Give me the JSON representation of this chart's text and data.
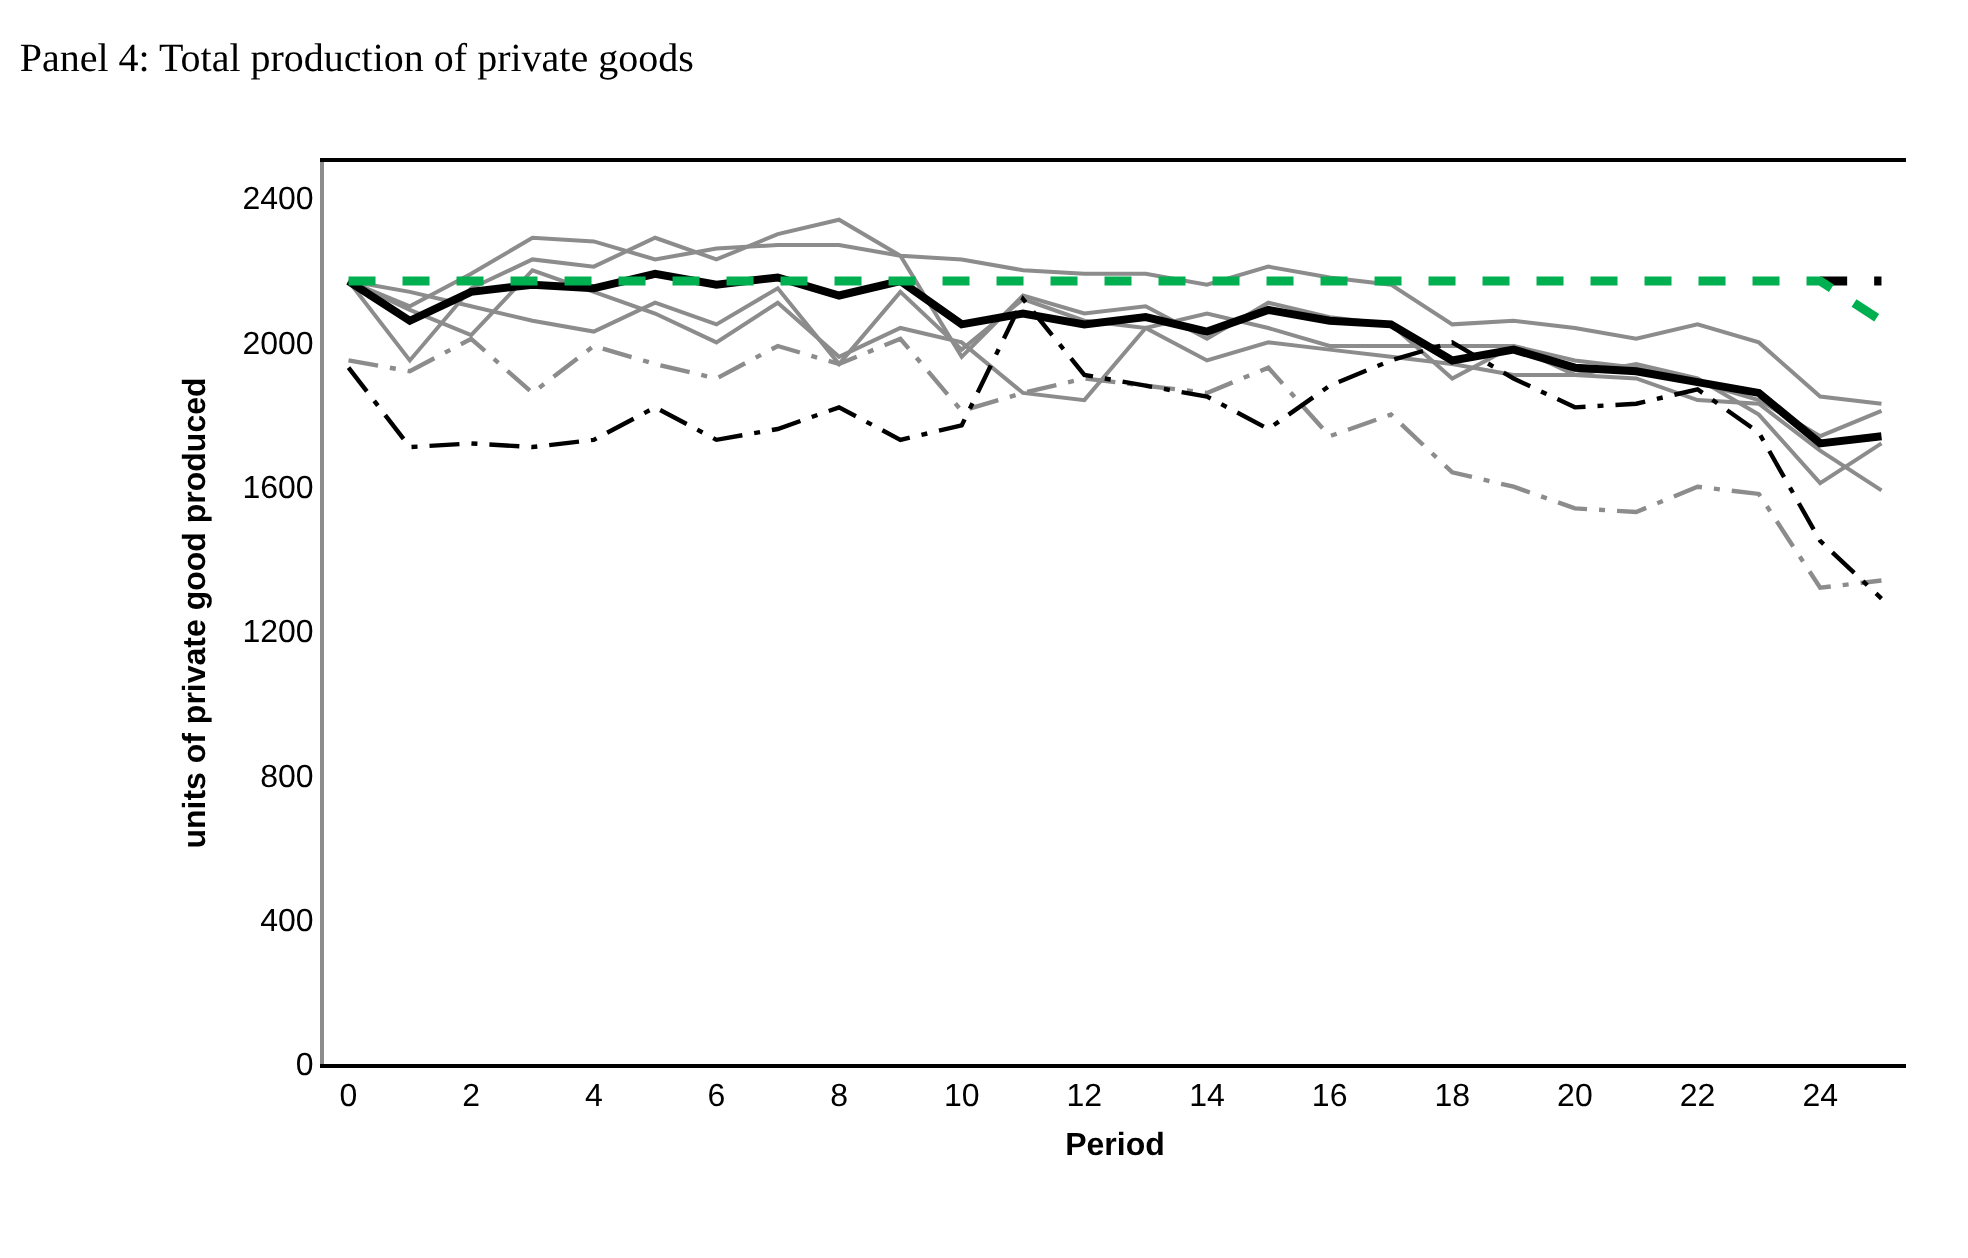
{
  "chart_data": {
    "type": "line",
    "title": "Panel 4: Total production of private goods",
    "xlabel": "Period",
    "ylabel": "units of private good produced",
    "x": [
      0,
      1,
      2,
      3,
      4,
      5,
      6,
      7,
      8,
      9,
      10,
      11,
      12,
      13,
      14,
      15,
      16,
      17,
      18,
      19,
      20,
      21,
      22,
      23,
      24,
      25
    ],
    "xlim": [
      -0.4,
      25.4
    ],
    "xticks": [
      0,
      2,
      4,
      6,
      8,
      10,
      12,
      14,
      16,
      18,
      20,
      22,
      24
    ],
    "ylim": [
      0,
      2500
    ],
    "yticks": [
      0,
      400,
      800,
      1200,
      1600,
      2000,
      2400
    ],
    "marker": "none",
    "series": [
      {
        "color": "#8c8c8c",
        "line_style": "solid",
        "values": [
          2170,
          2100,
          2190,
          2290,
          2280,
          2230,
          2260,
          2270,
          2270,
          2240,
          2230,
          2200,
          2190,
          2190,
          2160,
          2210,
          2180,
          2160,
          2050,
          2060,
          2040,
          2010,
          2050,
          2000,
          1850,
          1830
        ]
      },
      {
        "color": "#8c8c8c",
        "line_style": "solid",
        "values": [
          2170,
          1950,
          2150,
          2230,
          2210,
          2290,
          2230,
          2300,
          2340,
          2240,
          1960,
          2130,
          2080,
          2100,
          2010,
          2110,
          2070,
          2050,
          1900,
          1990,
          1910,
          1940,
          1900,
          1800,
          1610,
          1720
        ]
      },
      {
        "color": "#8c8c8c",
        "line_style": "solid",
        "values": [
          2170,
          2140,
          2100,
          2060,
          2030,
          2110,
          2050,
          2150,
          1940,
          2140,
          1980,
          2120,
          2060,
          2040,
          2080,
          2040,
          1990,
          1990,
          1990,
          1990,
          1950,
          1930,
          1890,
          1840,
          1740,
          1810
        ]
      },
      {
        "color": "#8c8c8c",
        "line_style": "solid",
        "values": [
          2170,
          2090,
          2020,
          2200,
          2140,
          2080,
          2000,
          2110,
          1960,
          2040,
          2000,
          1860,
          1840,
          2040,
          1950,
          2000,
          1980,
          1960,
          1940,
          1910,
          1910,
          1900,
          1840,
          1830,
          1700,
          1590
        ]
      },
      {
        "color": "#8c8c8c",
        "line_style": "dashdot",
        "values": [
          1950,
          1920,
          2010,
          1860,
          1990,
          1940,
          1900,
          1990,
          1940,
          2010,
          1810,
          1860,
          1900,
          1880,
          1860,
          1930,
          1740,
          1800,
          1640,
          1600,
          1540,
          1530,
          1600,
          1580,
          1320,
          1340
        ]
      },
      {
        "color": "#000000",
        "line_style": "dashdot",
        "values": [
          1930,
          1710,
          1720,
          1710,
          1730,
          1820,
          1730,
          1760,
          1820,
          1730,
          1770,
          2120,
          1910,
          1880,
          1850,
          1760,
          1880,
          1950,
          2000,
          1900,
          1820,
          1830,
          1870,
          1750,
          1450,
          1290
        ]
      },
      {
        "color": "#000000",
        "line_style": "solid",
        "values": [
          2170,
          2060,
          2140,
          2160,
          2150,
          2190,
          2160,
          2180,
          2130,
          2170,
          2050,
          2080,
          2050,
          2070,
          2030,
          2090,
          2060,
          2050,
          1950,
          1980,
          1930,
          1920,
          1890,
          1860,
          1720,
          1740
        ]
      },
      {
        "color": "#000000",
        "line_style": "dashed",
        "values": [
          null,
          null,
          null,
          null,
          null,
          null,
          null,
          null,
          null,
          null,
          null,
          null,
          null,
          null,
          null,
          null,
          null,
          null,
          null,
          null,
          null,
          null,
          null,
          null,
          2170,
          2170
        ]
      },
      {
        "color": "#00b050",
        "line_style": "dashed",
        "values": [
          2170,
          2170,
          2170,
          2170,
          2170,
          2170,
          2170,
          2170,
          2170,
          2170,
          2170,
          2170,
          2170,
          2170,
          2170,
          2170,
          2170,
          2170,
          2170,
          2170,
          2170,
          2170,
          2170,
          2170,
          2170,
          2060
        ]
      }
    ]
  }
}
